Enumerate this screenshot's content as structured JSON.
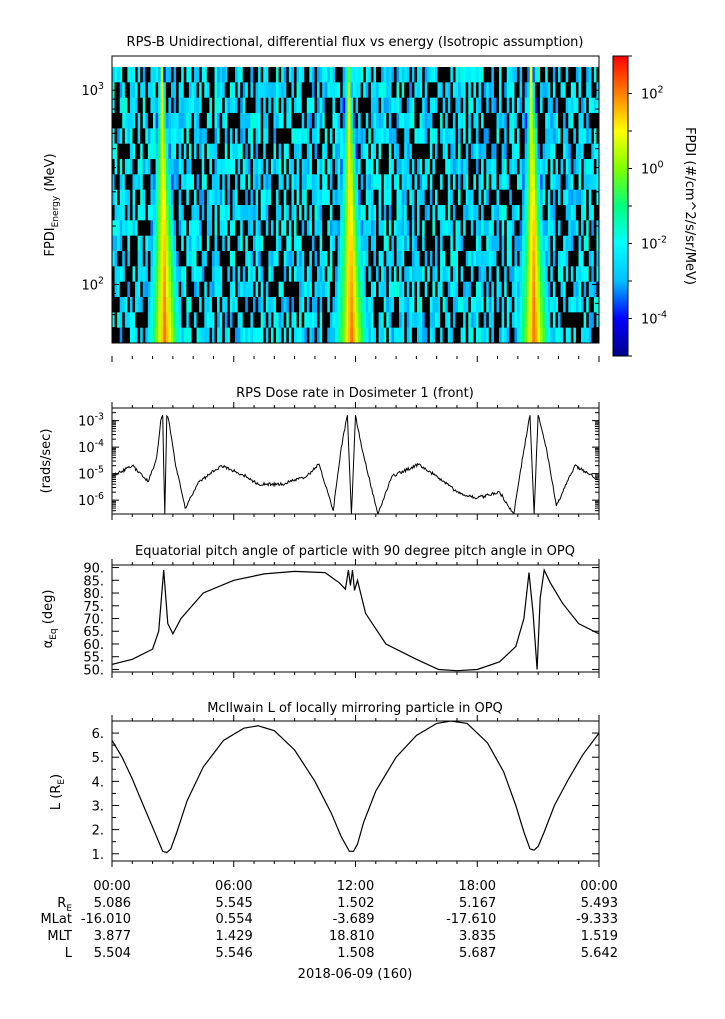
{
  "chart_data": [
    {
      "type": "heatmap",
      "title": "RPS-B  Unidirectional, differential flux vs energy (Isotropic assumption)",
      "ylabel_main": "FPDI",
      "ylabel_sub": "Energy",
      "ylabel_unit": " (MeV)",
      "y_scale": "log",
      "ylim": [
        50,
        1500
      ],
      "y_ticks": [
        {
          "base": "10",
          "exp": "2",
          "value": 100
        },
        {
          "base": "10",
          "exp": "3",
          "value": 1000
        }
      ],
      "energy_bands": 18,
      "time_range_hours": [
        0,
        24
      ],
      "bright_band_centers_hours": [
        2.6,
        11.8,
        20.8
      ],
      "colorbar": {
        "label": "FPDI (#/cm^2/s/sr/MeV)",
        "scale": "log",
        "range_exp": [
          -5,
          3
        ],
        "ticks": [
          {
            "base": "10",
            "exp": "2",
            "value": 2
          },
          {
            "base": "10",
            "exp": "0",
            "value": 0
          },
          {
            "base": "10",
            "exp": "-2",
            "value": -2
          },
          {
            "base": "10",
            "exp": "-4",
            "value": -4
          }
        ],
        "colors": [
          "#00008b",
          "#0000ff",
          "#00bfff",
          "#00ffff",
          "#00ff7f",
          "#7fff00",
          "#ffff00",
          "#ff8000",
          "#ff0000"
        ]
      }
    },
    {
      "type": "line",
      "title": "RPS  Dose rate in Dosimeter 1 (front)",
      "ylabel": "(rads/sec)",
      "y_scale": "log",
      "ylim": [
        3e-07,
        0.003
      ],
      "y_ticks": [
        {
          "base": "10",
          "exp": "-3",
          "value": 0.001
        },
        {
          "base": "10",
          "exp": "-4",
          "value": 0.0001
        },
        {
          "base": "10",
          "exp": "-5",
          "value": 1e-05
        },
        {
          "base": "10",
          "exp": "-6",
          "value": 1e-06
        }
      ],
      "x_hours": [
        0,
        1,
        1.8,
        2.2,
        2.4,
        2.5,
        2.6,
        2.7,
        2.8,
        3.1,
        3.6,
        4.3,
        5.4,
        6.6,
        7.2,
        8.4,
        9.6,
        10.2,
        10.9,
        11.3,
        11.6,
        11.8,
        12.0,
        12.3,
        13.1,
        13.8,
        15.1,
        16.0,
        17.1,
        18.0,
        19.1,
        19.8,
        20.3,
        20.6,
        20.8,
        21.0,
        21.4,
        21.9,
        22.8,
        24.0
      ],
      "values": [
        8e-06,
        2e-05,
        5e-06,
        4e-05,
        0.001,
        0.0016,
        3e-07,
        0.0015,
        0.001,
        3e-05,
        5e-07,
        5e-06,
        2e-05,
        8e-06,
        4e-06,
        4e-06,
        8e-06,
        2.3e-05,
        4e-07,
        0.0001,
        0.0016,
        3e-07,
        0.0016,
        0.0001,
        3e-07,
        8e-06,
        2.2e-05,
        8e-06,
        1.8e-06,
        1.2e-06,
        2e-06,
        3e-07,
        8e-05,
        0.0016,
        3e-07,
        0.0016,
        0.0001,
        6e-07,
        2e-05,
        6e-06
      ]
    },
    {
      "type": "line",
      "title": "Equatorial pitch angle of particle with 90 degree pitch angle in OPQ",
      "ylabel_main": "α",
      "ylabel_sub": "Eq",
      "ylabel_unit": " (deg)",
      "ylim": [
        49,
        91
      ],
      "y_ticks": [
        "90.",
        "85.",
        "80.",
        "75.",
        "70.",
        "65.",
        "60.",
        "55.",
        "50."
      ],
      "x_hours": [
        0,
        1,
        2,
        2.3,
        2.55,
        2.75,
        3.0,
        3.4,
        4.5,
        6.0,
        7.5,
        9.0,
        10.5,
        11.2,
        11.5,
        11.65,
        11.75,
        11.85,
        11.95,
        12.1,
        12.5,
        13.5,
        15,
        16.1,
        17,
        18,
        19.1,
        19.9,
        20.3,
        20.55,
        20.75,
        20.95,
        21.1,
        21.3,
        21.6,
        22.2,
        23,
        24
      ],
      "values": [
        52,
        54,
        58,
        65,
        89,
        68,
        64,
        70,
        80,
        85,
        87.5,
        88.5,
        88,
        84,
        81.5,
        89,
        83,
        89,
        81,
        85,
        72,
        60,
        54,
        50,
        49.5,
        50,
        53,
        59,
        70,
        88,
        72,
        50,
        78,
        89,
        84,
        76,
        68,
        64
      ]
    },
    {
      "type": "line",
      "title": "McIlwain L of locally mirroring particle in OPQ",
      "ylabel_main": "L (R",
      "ylabel_sub": "E",
      "ylabel_unit": ")",
      "ylim": [
        0.7,
        6.5
      ],
      "y_ticks": [
        "6.",
        "5.",
        "4.",
        "3.",
        "2.",
        "1."
      ],
      "x_hours": [
        0,
        0.5,
        1,
        1.5,
        2,
        2.3,
        2.5,
        2.7,
        2.9,
        3.2,
        3.7,
        4.5,
        5.5,
        6.5,
        7.2,
        8,
        9,
        10,
        10.8,
        11.3,
        11.7,
        11.9,
        12.1,
        12.4,
        13,
        14,
        15,
        16,
        16.7,
        17.5,
        18.5,
        19.3,
        19.9,
        20.3,
        20.6,
        20.8,
        21.0,
        21.3,
        21.8,
        22.5,
        23.2,
        24
      ],
      "values": [
        5.7,
        5.0,
        4.1,
        3.1,
        2.1,
        1.5,
        1.1,
        1.05,
        1.2,
        1.9,
        3.2,
        4.6,
        5.7,
        6.2,
        6.3,
        6.1,
        5.3,
        4.0,
        2.7,
        1.7,
        1.1,
        1.1,
        1.4,
        2.3,
        3.6,
        5.0,
        5.9,
        6.4,
        6.5,
        6.4,
        5.6,
        4.4,
        3.0,
        1.9,
        1.2,
        1.15,
        1.3,
        1.9,
        3.0,
        4.1,
        5.1,
        6.0
      ]
    }
  ],
  "time_axis": {
    "tick_labels": [
      "00:00",
      "06:00",
      "12:00",
      "18:00",
      "00:00"
    ],
    "date_label": "2018-06-09 (160)"
  },
  "ephemeris": {
    "rows": [
      {
        "label_main": "R",
        "label_sub": "E",
        "values": [
          "5.086",
          "5.545",
          "1.502",
          "5.167",
          "5.493"
        ]
      },
      {
        "label_main": "MLat",
        "label_sub": "",
        "values": [
          "-16.010",
          "0.554",
          "-3.689",
          "-17.610",
          "-9.333"
        ]
      },
      {
        "label_main": "MLT",
        "label_sub": "",
        "values": [
          "3.877",
          "1.429",
          "18.810",
          "3.835",
          "1.519"
        ]
      },
      {
        "label_main": "L",
        "label_sub": "",
        "values": [
          "5.504",
          "5.546",
          "1.508",
          "5.687",
          "5.642"
        ]
      }
    ]
  }
}
